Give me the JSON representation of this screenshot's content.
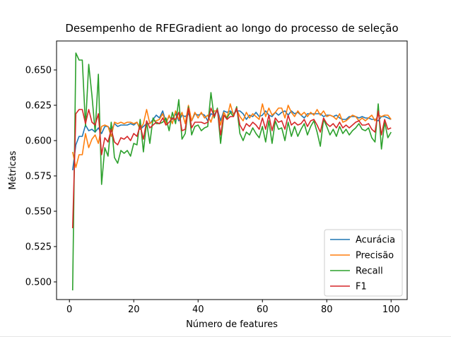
{
  "chart_data": {
    "type": "line",
    "title": "Desempenho de RFEGradient ao longo do processo de seleção",
    "xlabel": "Número de features",
    "ylabel": "Métricas",
    "xlim": [
      -4,
      105
    ],
    "ylim": [
      0.4875,
      0.6705
    ],
    "x_ticks": [
      0,
      20,
      40,
      60,
      80,
      100
    ],
    "y_ticks": [
      0.5,
      0.525,
      0.55,
      0.575,
      0.6,
      0.625,
      0.65
    ],
    "y_tick_labels": [
      "0.500",
      "0.525",
      "0.550",
      "0.575",
      "0.600",
      "0.625",
      "0.650"
    ],
    "grid": false,
    "legend_position": "lower right",
    "x": [
      1,
      2,
      3,
      4,
      5,
      6,
      7,
      8,
      9,
      10,
      11,
      12,
      13,
      14,
      15,
      16,
      17,
      18,
      19,
      20,
      21,
      22,
      23,
      24,
      25,
      26,
      27,
      28,
      29,
      30,
      31,
      32,
      33,
      34,
      35,
      36,
      37,
      38,
      39,
      40,
      41,
      42,
      43,
      44,
      45,
      46,
      47,
      48,
      49,
      50,
      51,
      52,
      53,
      54,
      55,
      56,
      57,
      58,
      59,
      60,
      61,
      62,
      63,
      64,
      65,
      66,
      67,
      68,
      69,
      70,
      71,
      72,
      73,
      74,
      75,
      76,
      77,
      78,
      79,
      80,
      81,
      82,
      83,
      84,
      85,
      86,
      87,
      88,
      89,
      90,
      91,
      92,
      93,
      94,
      95,
      96,
      97,
      98,
      99,
      100
    ],
    "series": [
      {
        "name": "Acurácia",
        "color": "#1f77b4",
        "values": [
          0.579,
          0.597,
          0.603,
          0.603,
          0.611,
          0.607,
          0.608,
          0.606,
          0.609,
          0.605,
          0.61,
          0.61,
          0.607,
          0.612,
          0.61,
          0.611,
          0.611,
          0.611,
          0.612,
          0.611,
          0.613,
          0.608,
          0.61,
          0.612,
          0.612,
          0.615,
          0.618,
          0.616,
          0.621,
          0.613,
          0.617,
          0.615,
          0.619,
          0.614,
          0.618,
          0.617,
          0.619,
          0.614,
          0.619,
          0.618,
          0.619,
          0.618,
          0.614,
          0.619,
          0.618,
          0.622,
          0.614,
          0.621,
          0.62,
          0.621,
          0.619,
          0.621,
          0.621,
          0.619,
          0.615,
          0.618,
          0.617,
          0.62,
          0.617,
          0.618,
          0.621,
          0.618,
          0.617,
          0.62,
          0.618,
          0.62,
          0.621,
          0.618,
          0.621,
          0.619,
          0.62,
          0.618,
          0.616,
          0.619,
          0.619,
          0.619,
          0.619,
          0.619,
          0.617,
          0.618,
          0.618,
          0.617,
          0.618,
          0.616,
          0.615,
          0.615,
          0.617,
          0.617,
          0.617,
          0.616,
          0.617,
          0.616,
          0.616,
          0.615,
          0.615,
          0.614,
          0.617,
          0.617,
          0.616,
          0.615
        ]
      },
      {
        "name": "Precisão",
        "color": "#ff7f0e",
        "values": [
          0.592,
          0.581,
          0.59,
          0.59,
          0.605,
          0.595,
          0.601,
          0.604,
          0.598,
          0.61,
          0.611,
          0.61,
          0.603,
          0.613,
          0.612,
          0.613,
          0.612,
          0.613,
          0.613,
          0.612,
          0.613,
          0.608,
          0.612,
          0.622,
          0.612,
          0.614,
          0.614,
          0.615,
          0.619,
          0.612,
          0.618,
          0.612,
          0.621,
          0.615,
          0.62,
          0.612,
          0.625,
          0.614,
          0.62,
          0.616,
          0.62,
          0.616,
          0.618,
          0.613,
          0.621,
          0.621,
          0.611,
          0.62,
          0.616,
          0.626,
          0.618,
          0.622,
          0.617,
          0.614,
          0.62,
          0.616,
          0.619,
          0.617,
          0.615,
          0.626,
          0.617,
          0.623,
          0.618,
          0.62,
          0.623,
          0.623,
          0.616,
          0.625,
          0.62,
          0.617,
          0.621,
          0.618,
          0.62,
          0.617,
          0.62,
          0.618,
          0.622,
          0.618,
          0.621,
          0.617,
          0.618,
          0.617,
          0.615,
          0.619,
          0.613,
          0.614,
          0.616,
          0.618,
          0.617,
          0.614,
          0.616,
          0.614,
          0.616,
          0.618,
          0.614,
          0.618,
          0.617,
          0.618,
          0.618,
          0.615
        ]
      },
      {
        "name": "Recall",
        "color": "#2ca02c",
        "values": [
          0.494,
          0.662,
          0.657,
          0.657,
          0.61,
          0.654,
          0.632,
          0.606,
          0.647,
          0.569,
          0.595,
          0.589,
          0.613,
          0.588,
          0.584,
          0.593,
          0.591,
          0.593,
          0.589,
          0.598,
          0.597,
          0.615,
          0.592,
          0.613,
          0.598,
          0.616,
          0.612,
          0.612,
          0.613,
          0.616,
          0.607,
          0.62,
          0.612,
          0.629,
          0.601,
          0.605,
          0.624,
          0.604,
          0.61,
          0.611,
          0.607,
          0.609,
          0.61,
          0.634,
          0.616,
          0.623,
          0.598,
          0.618,
          0.616,
          0.62,
          0.617,
          0.624,
          0.605,
          0.6,
          0.606,
          0.604,
          0.609,
          0.605,
          0.602,
          0.61,
          0.599,
          0.614,
          0.598,
          0.614,
          0.608,
          0.609,
          0.6,
          0.613,
          0.603,
          0.61,
          0.603,
          0.608,
          0.612,
          0.604,
          0.61,
          0.614,
          0.606,
          0.596,
          0.615,
          0.61,
          0.604,
          0.608,
          0.603,
          0.61,
          0.605,
          0.608,
          0.604,
          0.607,
          0.609,
          0.612,
          0.608,
          0.607,
          0.609,
          0.602,
          0.599,
          0.626,
          0.594,
          0.613,
          0.602,
          0.606
        ]
      },
      {
        "name": "F1",
        "color": "#d62728",
        "values": [
          0.538,
          0.619,
          0.622,
          0.622,
          0.612,
          0.622,
          0.613,
          0.611,
          0.619,
          0.59,
          0.602,
          0.599,
          0.608,
          0.599,
          0.597,
          0.602,
          0.601,
          0.603,
          0.6,
          0.605,
          0.603,
          0.611,
          0.601,
          0.614,
          0.609,
          0.611,
          0.613,
          0.612,
          0.616,
          0.611,
          0.613,
          0.616,
          0.615,
          0.62,
          0.607,
          0.608,
          0.623,
          0.609,
          0.613,
          0.613,
          0.613,
          0.612,
          0.613,
          0.623,
          0.617,
          0.622,
          0.604,
          0.618,
          0.615,
          0.617,
          0.617,
          0.623,
          0.611,
          0.607,
          0.612,
          0.61,
          0.613,
          0.611,
          0.608,
          0.616,
          0.608,
          0.618,
          0.607,
          0.616,
          0.613,
          0.614,
          0.608,
          0.618,
          0.611,
          0.613,
          0.611,
          0.612,
          0.615,
          0.61,
          0.614,
          0.615,
          0.611,
          0.606,
          0.616,
          0.612,
          0.61,
          0.612,
          0.609,
          0.613,
          0.609,
          0.611,
          0.609,
          0.611,
          0.613,
          0.614,
          0.611,
          0.611,
          0.612,
          0.608,
          0.606,
          0.621,
          0.604,
          0.615,
          0.608,
          0.609
        ]
      }
    ]
  }
}
